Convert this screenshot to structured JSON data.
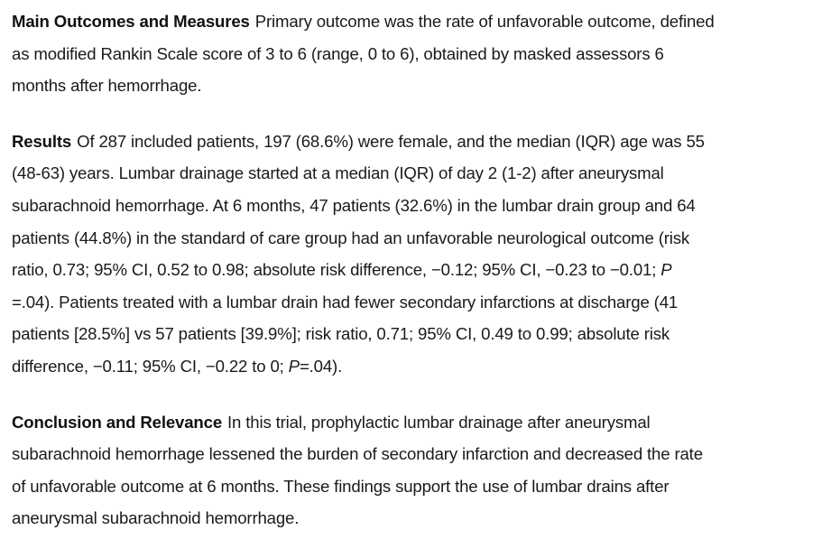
{
  "abstract": {
    "sections": [
      {
        "heading": "Main Outcomes and Measures",
        "lines": [
          [
            {
              "t": "Primary outcome was the rate of unfavorable outcome, defined"
            }
          ],
          [
            {
              "t": "as modified Rankin Scale score of 3 to 6 (range, 0 to 6), obtained by masked assessors 6"
            }
          ],
          [
            {
              "t": "months after hemorrhage."
            }
          ]
        ]
      },
      {
        "heading": "Results",
        "lines": [
          [
            {
              "t": "Of 287 included patients, 197 (68.6%) were female, and the median (IQR) age was 55"
            }
          ],
          [
            {
              "t": "(48-63) years. Lumbar drainage started at a median (IQR) of day 2 (1-2) after aneurysmal"
            }
          ],
          [
            {
              "t": "subarachnoid hemorrhage. At 6 months, 47 patients (32.6%) in the lumbar drain group and 64"
            }
          ],
          [
            {
              "t": "patients (44.8%) in the standard of care group had an unfavorable neurological outcome (risk"
            }
          ],
          [
            {
              "t": "ratio, 0.73; 95% CI, 0.52 to 0.98; absolute risk difference, −0.12; 95% CI, −0.23 to −0.01; "
            },
            {
              "t": "P",
              "italic": true
            }
          ],
          [
            {
              "t": "=.04). Patients treated with a lumbar drain had fewer secondary infarctions at discharge (41"
            }
          ],
          [
            {
              "t": "patients [28.5%] vs 57 patients [39.9%]; risk ratio, 0.71; 95% CI, 0.49 to 0.99; absolute risk"
            }
          ],
          [
            {
              "t": "difference, −0.11; 95% CI, −0.22 to 0; "
            },
            {
              "t": "P",
              "italic": true
            },
            {
              "t": "=.04)."
            }
          ]
        ]
      },
      {
        "heading": "Conclusion and Relevance",
        "lines": [
          [
            {
              "t": "In this trial, prophylactic lumbar drainage after aneurysmal"
            }
          ],
          [
            {
              "t": "subarachnoid hemorrhage lessened the burden of secondary infarction and decreased the rate"
            }
          ],
          [
            {
              "t": "of unfavorable outcome at 6 months. These findings support the use of lumbar drains after"
            }
          ],
          [
            {
              "t": "aneurysmal subarachnoid hemorrhage."
            }
          ]
        ]
      }
    ]
  }
}
